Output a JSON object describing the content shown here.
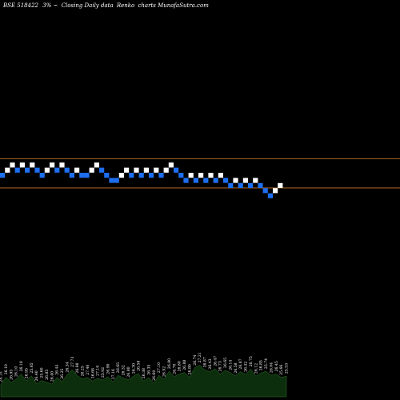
{
  "header": {
    "symbol": "BSE 518422",
    "percent": "3%",
    "separator": "~",
    "description": "Closing Daily data",
    "chart_kind": "Renko",
    "site": "charts MunafaSutra.com"
  },
  "colors": {
    "background": "#000000",
    "up_brick": "#ffffff",
    "down_brick": "#1e6ff0",
    "reference_line": "#c8782a",
    "volume_fill": "#0d2e0d",
    "volume_edge": "#2f6f2f",
    "text": "#ffffff"
  },
  "chart_data": {
    "type": "renko",
    "brick_percent": 3,
    "reference_lines": [
      2,
      -2
    ],
    "bricks": [
      {
        "d": "down",
        "lvl": 0
      },
      {
        "d": "up",
        "lvl": 1
      },
      {
        "d": "up",
        "lvl": 2
      },
      {
        "d": "down",
        "lvl": 1
      },
      {
        "d": "up",
        "lvl": 2
      },
      {
        "d": "down",
        "lvl": 1
      },
      {
        "d": "up",
        "lvl": 2
      },
      {
        "d": "down",
        "lvl": 1
      },
      {
        "d": "down",
        "lvl": 0
      },
      {
        "d": "up",
        "lvl": 1
      },
      {
        "d": "up",
        "lvl": 2
      },
      {
        "d": "down",
        "lvl": 1
      },
      {
        "d": "up",
        "lvl": 2
      },
      {
        "d": "down",
        "lvl": 1
      },
      {
        "d": "down",
        "lvl": 0
      },
      {
        "d": "up",
        "lvl": 1
      },
      {
        "d": "down",
        "lvl": 0
      },
      {
        "d": "down",
        "lvl": 0
      },
      {
        "d": "up",
        "lvl": 1
      },
      {
        "d": "up",
        "lvl": 2
      },
      {
        "d": "down",
        "lvl": 1
      },
      {
        "d": "down",
        "lvl": 0
      },
      {
        "d": "down",
        "lvl": -1
      },
      {
        "d": "down",
        "lvl": -1
      },
      {
        "d": "up",
        "lvl": 0
      },
      {
        "d": "up",
        "lvl": 1
      },
      {
        "d": "down",
        "lvl": 0
      },
      {
        "d": "up",
        "lvl": 1
      },
      {
        "d": "down",
        "lvl": 0
      },
      {
        "d": "up",
        "lvl": 1
      },
      {
        "d": "down",
        "lvl": 0
      },
      {
        "d": "up",
        "lvl": 1
      },
      {
        "d": "down",
        "lvl": 0
      },
      {
        "d": "up",
        "lvl": 1
      },
      {
        "d": "up",
        "lvl": 2
      },
      {
        "d": "down",
        "lvl": 1
      },
      {
        "d": "down",
        "lvl": 0
      },
      {
        "d": "down",
        "lvl": -1
      },
      {
        "d": "up",
        "lvl": 0
      },
      {
        "d": "down",
        "lvl": -1
      },
      {
        "d": "up",
        "lvl": 0
      },
      {
        "d": "down",
        "lvl": -1
      },
      {
        "d": "up",
        "lvl": 0
      },
      {
        "d": "down",
        "lvl": -1
      },
      {
        "d": "up",
        "lvl": 0
      },
      {
        "d": "down",
        "lvl": -1
      },
      {
        "d": "down",
        "lvl": -2
      },
      {
        "d": "up",
        "lvl": -1
      },
      {
        "d": "down",
        "lvl": -2
      },
      {
        "d": "up",
        "lvl": -1
      },
      {
        "d": "down",
        "lvl": -2
      },
      {
        "d": "up",
        "lvl": -1
      },
      {
        "d": "down",
        "lvl": -2
      },
      {
        "d": "down",
        "lvl": -3
      },
      {
        "d": "down",
        "lvl": -4
      },
      {
        "d": "up",
        "lvl": -3
      },
      {
        "d": "up",
        "lvl": -2
      }
    ],
    "volume": [
      {
        "v": 28,
        "label": "28.15"
      },
      {
        "v": 45,
        "label": "26.10"
      },
      {
        "v": 33,
        "label": "26.95"
      },
      {
        "v": 40,
        "label": "26.10"
      },
      {
        "v": 52,
        "label": "26.18"
      },
      {
        "v": 36,
        "label": "26.95"
      },
      {
        "v": 48,
        "label": "25.65"
      },
      {
        "v": 30,
        "label": "26.40"
      },
      {
        "v": 37,
        "label": "25.60"
      },
      {
        "v": 33,
        "label": "26.85"
      },
      {
        "v": 29,
        "label": "26.40"
      },
      {
        "v": 44,
        "label": "26.44"
      },
      {
        "v": 35,
        "label": "26.25"
      },
      {
        "v": 50,
        "label": "26.34"
      },
      {
        "v": 62,
        "label": "27.73"
      },
      {
        "v": 48,
        "label": "26.88"
      },
      {
        "v": 41,
        "label": "26.25"
      },
      {
        "v": 44,
        "label": "27.40"
      },
      {
        "v": 36,
        "label": "26.66"
      },
      {
        "v": 42,
        "label": "27.10"
      },
      {
        "v": 38,
        "label": "25.92"
      },
      {
        "v": 46,
        "label": "26.90"
      },
      {
        "v": 34,
        "label": "27.16"
      },
      {
        "v": 49,
        "label": "26.65"
      },
      {
        "v": 43,
        "label": "26.32"
      },
      {
        "v": 39,
        "label": "26.80"
      },
      {
        "v": 47,
        "label": "26.30"
      },
      {
        "v": 53,
        "label": "26.58"
      },
      {
        "v": 36,
        "label": "26.38"
      },
      {
        "v": 44,
        "label": "26.35"
      },
      {
        "v": 31,
        "label": "26.60"
      },
      {
        "v": 49,
        "label": "27.10"
      },
      {
        "v": 40,
        "label": "26.92"
      },
      {
        "v": 58,
        "label": "26.80"
      },
      {
        "v": 46,
        "label": "26.70"
      },
      {
        "v": 52,
        "label": "26.80"
      },
      {
        "v": 55,
        "label": "26.88"
      },
      {
        "v": 45,
        "label": "26.80"
      },
      {
        "v": 66,
        "label": "26.74"
      },
      {
        "v": 72,
        "label": "27.21"
      },
      {
        "v": 61,
        "label": "26.87"
      },
      {
        "v": 57,
        "label": "26.43"
      },
      {
        "v": 64,
        "label": "26.47"
      },
      {
        "v": 52,
        "label": "26.73"
      },
      {
        "v": 60,
        "label": "26.65"
      },
      {
        "v": 55,
        "label": "26.14"
      },
      {
        "v": 48,
        "label": "26.58"
      },
      {
        "v": 57,
        "label": "26.87"
      },
      {
        "v": 51,
        "label": "26.42"
      },
      {
        "v": 63,
        "label": "26.75"
      },
      {
        "v": 47,
        "label": "26.12"
      },
      {
        "v": 54,
        "label": "26.85"
      },
      {
        "v": 58,
        "label": "25.74"
      },
      {
        "v": 49,
        "label": "26.04"
      },
      {
        "v": 52,
        "label": "26.45"
      },
      {
        "v": 44,
        "label": "25.66"
      },
      {
        "v": 47,
        "label": "25.53"
      }
    ]
  }
}
